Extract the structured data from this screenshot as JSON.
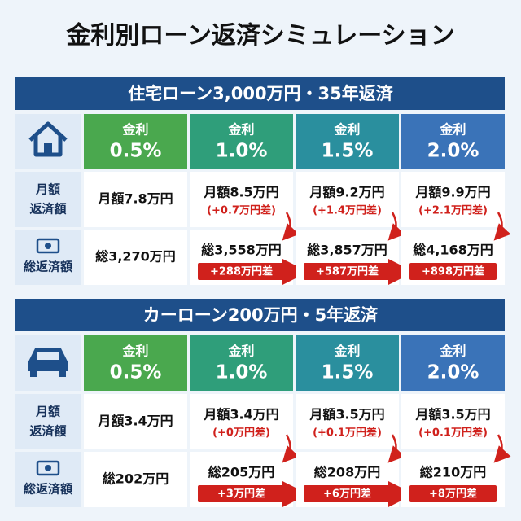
{
  "title": "金利別ローン返済シミュレーション",
  "sections": [
    {
      "header": "住宅ローン3,000万円・35年返済",
      "rates": [
        {
          "label": "金利",
          "value": "0.5%"
        },
        {
          "label": "金利",
          "value": "1.0%"
        },
        {
          "label": "金利",
          "value": "1.5%"
        },
        {
          "label": "金利",
          "value": "2.0%"
        }
      ],
      "monthly_label": [
        "月額",
        "返済額"
      ],
      "total_label": "総返済額",
      "monthly": [
        {
          "text": "月額7.8万円"
        },
        {
          "text": "月額8.5万円",
          "diff": "(+0.7万円差)"
        },
        {
          "text": "月額9.2万円",
          "diff": "(+1.4万円差)"
        },
        {
          "text": "月額9.9万円",
          "diff": "(+2.1万円差)"
        }
      ],
      "total": [
        {
          "text": "総3,270万円"
        },
        {
          "text": "総3,558万円",
          "diff": "+288万円差"
        },
        {
          "text": "総3,857万円",
          "diff": "+587万円差"
        },
        {
          "text": "総4,168万円",
          "diff": "+898万円差"
        }
      ]
    },
    {
      "header": "カーローン200万円・5年返済",
      "rates": [
        {
          "label": "金利",
          "value": "0.5%"
        },
        {
          "label": "金利",
          "value": "1.0%"
        },
        {
          "label": "金利",
          "value": "1.5%"
        },
        {
          "label": "金利",
          "value": "2.0%"
        }
      ],
      "monthly_label": [
        "月額",
        "返済額"
      ],
      "total_label": "総返済額",
      "monthly": [
        {
          "text": "月額3.4万円"
        },
        {
          "text": "月額3.4万円",
          "diff": "(+0万円差)"
        },
        {
          "text": "月額3.5万円",
          "diff": "(+0.1万円差)"
        },
        {
          "text": "月額3.5万円",
          "diff": "(+0.1万円差)"
        }
      ],
      "total": [
        {
          "text": "総202万円"
        },
        {
          "text": "総205万円",
          "diff": "+3万円差"
        },
        {
          "text": "総208万円",
          "diff": "+6万円差"
        },
        {
          "text": "総210万円",
          "diff": "+8万円差"
        }
      ]
    }
  ]
}
